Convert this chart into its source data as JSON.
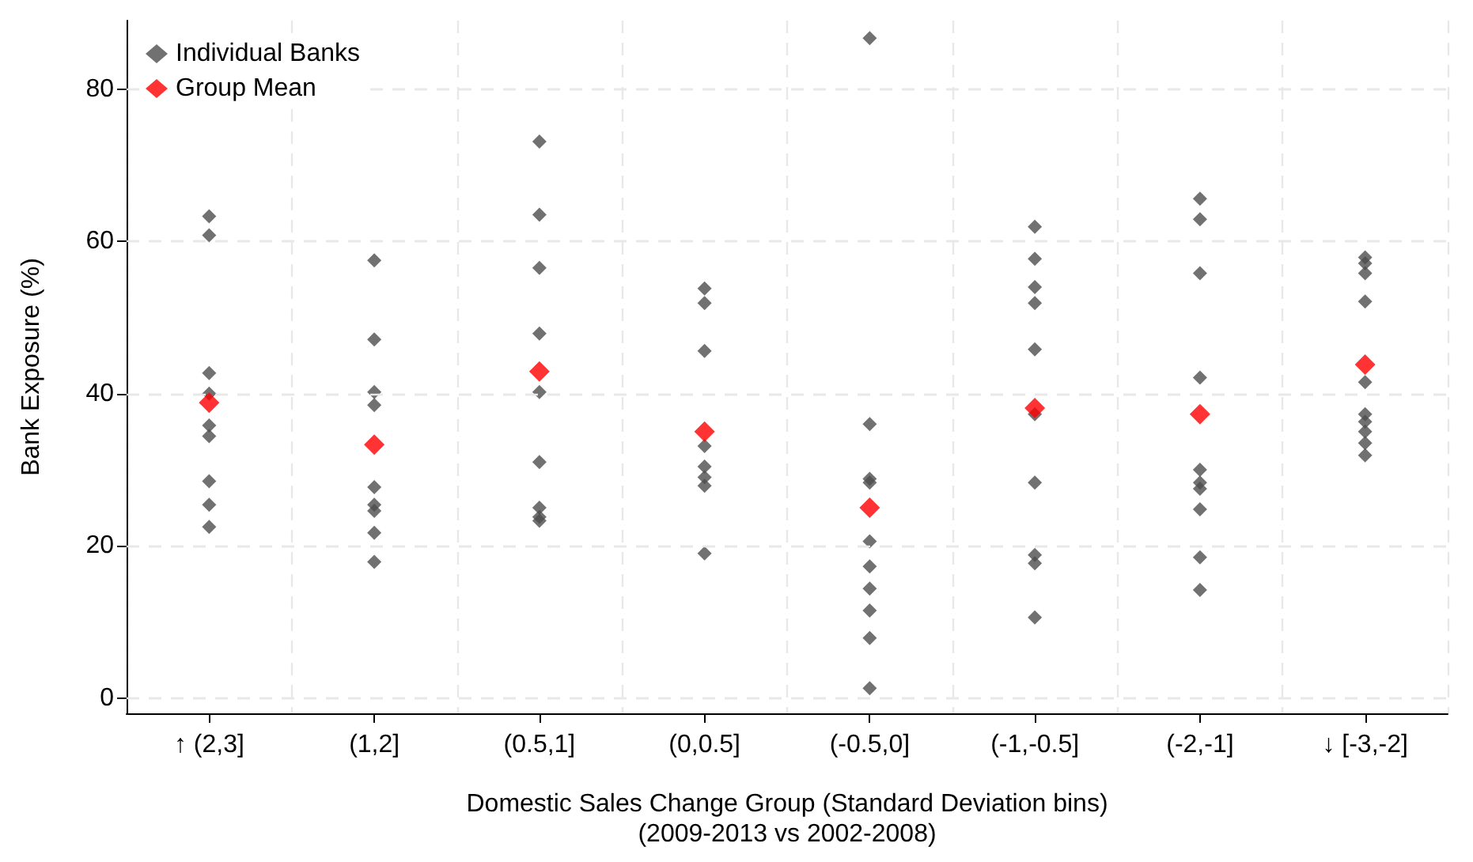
{
  "chart_data": {
    "type": "scatter",
    "xlabel": "Domestic Sales Change Group (Standard Deviation bins)\n(2009-2013 vs 2002-2008)",
    "ylabel": "Bank Exposure (%)",
    "categories": [
      "↑ (2,3]",
      "(1,2]",
      "(0.5,1]",
      "(0,0.5]",
      "(-0.5,0]",
      "(-1,-0.5]",
      "(-2,-1]",
      "↓ [-3,-2]"
    ],
    "series": [
      {
        "name": "Individual Banks",
        "color": "#4d4d4d",
        "marker": "diamond",
        "x": [
          "↑ (2,3]",
          "↑ (2,3]",
          "↑ (2,3]",
          "↑ (2,3]",
          "↑ (2,3]",
          "↑ (2,3]",
          "↑ (2,3]",
          "↑ (2,3]",
          "↑ (2,3]",
          "(1,2]",
          "(1,2]",
          "(1,2]",
          "(1,2]",
          "(1,2]",
          "(1,2]",
          "(1,2]",
          "(1,2]",
          "(1,2]",
          "(0.5,1]",
          "(0.5,1]",
          "(0.5,1]",
          "(0.5,1]",
          "(0.5,1]",
          "(0.5,1]",
          "(0.5,1]",
          "(0.5,1]",
          "(0.5,1]",
          "(0,0.5]",
          "(0,0.5]",
          "(0,0.5]",
          "(0,0.5]",
          "(0,0.5]",
          "(0,0.5]",
          "(0,0.5]",
          "(0,0.5]",
          "(-0.5,0]",
          "(-0.5,0]",
          "(-0.5,0]",
          "(-0.5,0]",
          "(-0.5,0]",
          "(-0.5,0]",
          "(-0.5,0]",
          "(-0.5,0]",
          "(-0.5,0]",
          "(-0.5,0]",
          "(-1,-0.5]",
          "(-1,-0.5]",
          "(-1,-0.5]",
          "(-1,-0.5]",
          "(-1,-0.5]",
          "(-1,-0.5]",
          "(-1,-0.5]",
          "(-1,-0.5]",
          "(-1,-0.5]",
          "(-1,-0.5]",
          "(-2,-1]",
          "(-2,-1]",
          "(-2,-1]",
          "(-2,-1]",
          "(-2,-1]",
          "(-2,-1]",
          "(-2,-1]",
          "(-2,-1]",
          "(-2,-1]",
          "(-2,-1]",
          "↓ [-3,-2]",
          "↓ [-3,-2]",
          "↓ [-3,-2]",
          "↓ [-3,-2]",
          "↓ [-3,-2]",
          "↓ [-3,-2]",
          "↓ [-3,-2]",
          "↓ [-3,-2]",
          "↓ [-3,-2]",
          "↓ [-3,-2]"
        ],
        "values": [
          63.3,
          60.8,
          42.7,
          40,
          35.8,
          34.4,
          28.5,
          25.4,
          22.5,
          57.5,
          47.1,
          40.2,
          38.5,
          27.7,
          25.4,
          24.6,
          21.7,
          17.9,
          73.1,
          63.5,
          56.5,
          47.9,
          40.2,
          31.0,
          25.0,
          23.8,
          23.3,
          53.8,
          51.9,
          45.6,
          33.1,
          30.4,
          29.0,
          27.9,
          19.0,
          86.7,
          36.0,
          28.8,
          28.3,
          20.6,
          17.3,
          14.4,
          11.5,
          7.9,
          1.3,
          61.9,
          57.7,
          54.0,
          51.9,
          45.8,
          37.3,
          28.3,
          18.8,
          17.7,
          10.6,
          65.6,
          62.9,
          55.8,
          42.1,
          30.0,
          28.3,
          27.5,
          24.8,
          18.5,
          14.2,
          57.9,
          57.1,
          55.8,
          52.1,
          41.5,
          37.3,
          36.3,
          35.0,
          33.5,
          31.9
        ]
      },
      {
        "name": "Group Mean",
        "color": "#ff0000",
        "marker": "diamond",
        "x": [
          "↑ (2,3]",
          "(1,2]",
          "(0.5,1]",
          "(0,0.5]",
          "(-0.5,0]",
          "(-1,-0.5]",
          "(-2,-1]",
          "↓ [-3,-2]"
        ],
        "values": [
          38.8,
          33.3,
          42.9,
          35.0,
          25.0,
          38.1,
          37.3,
          43.8
        ]
      }
    ],
    "ylim": [
      -2,
      89
    ],
    "yticks": [
      0,
      20,
      40,
      60,
      80
    ],
    "grid": true,
    "legend": "top left"
  }
}
